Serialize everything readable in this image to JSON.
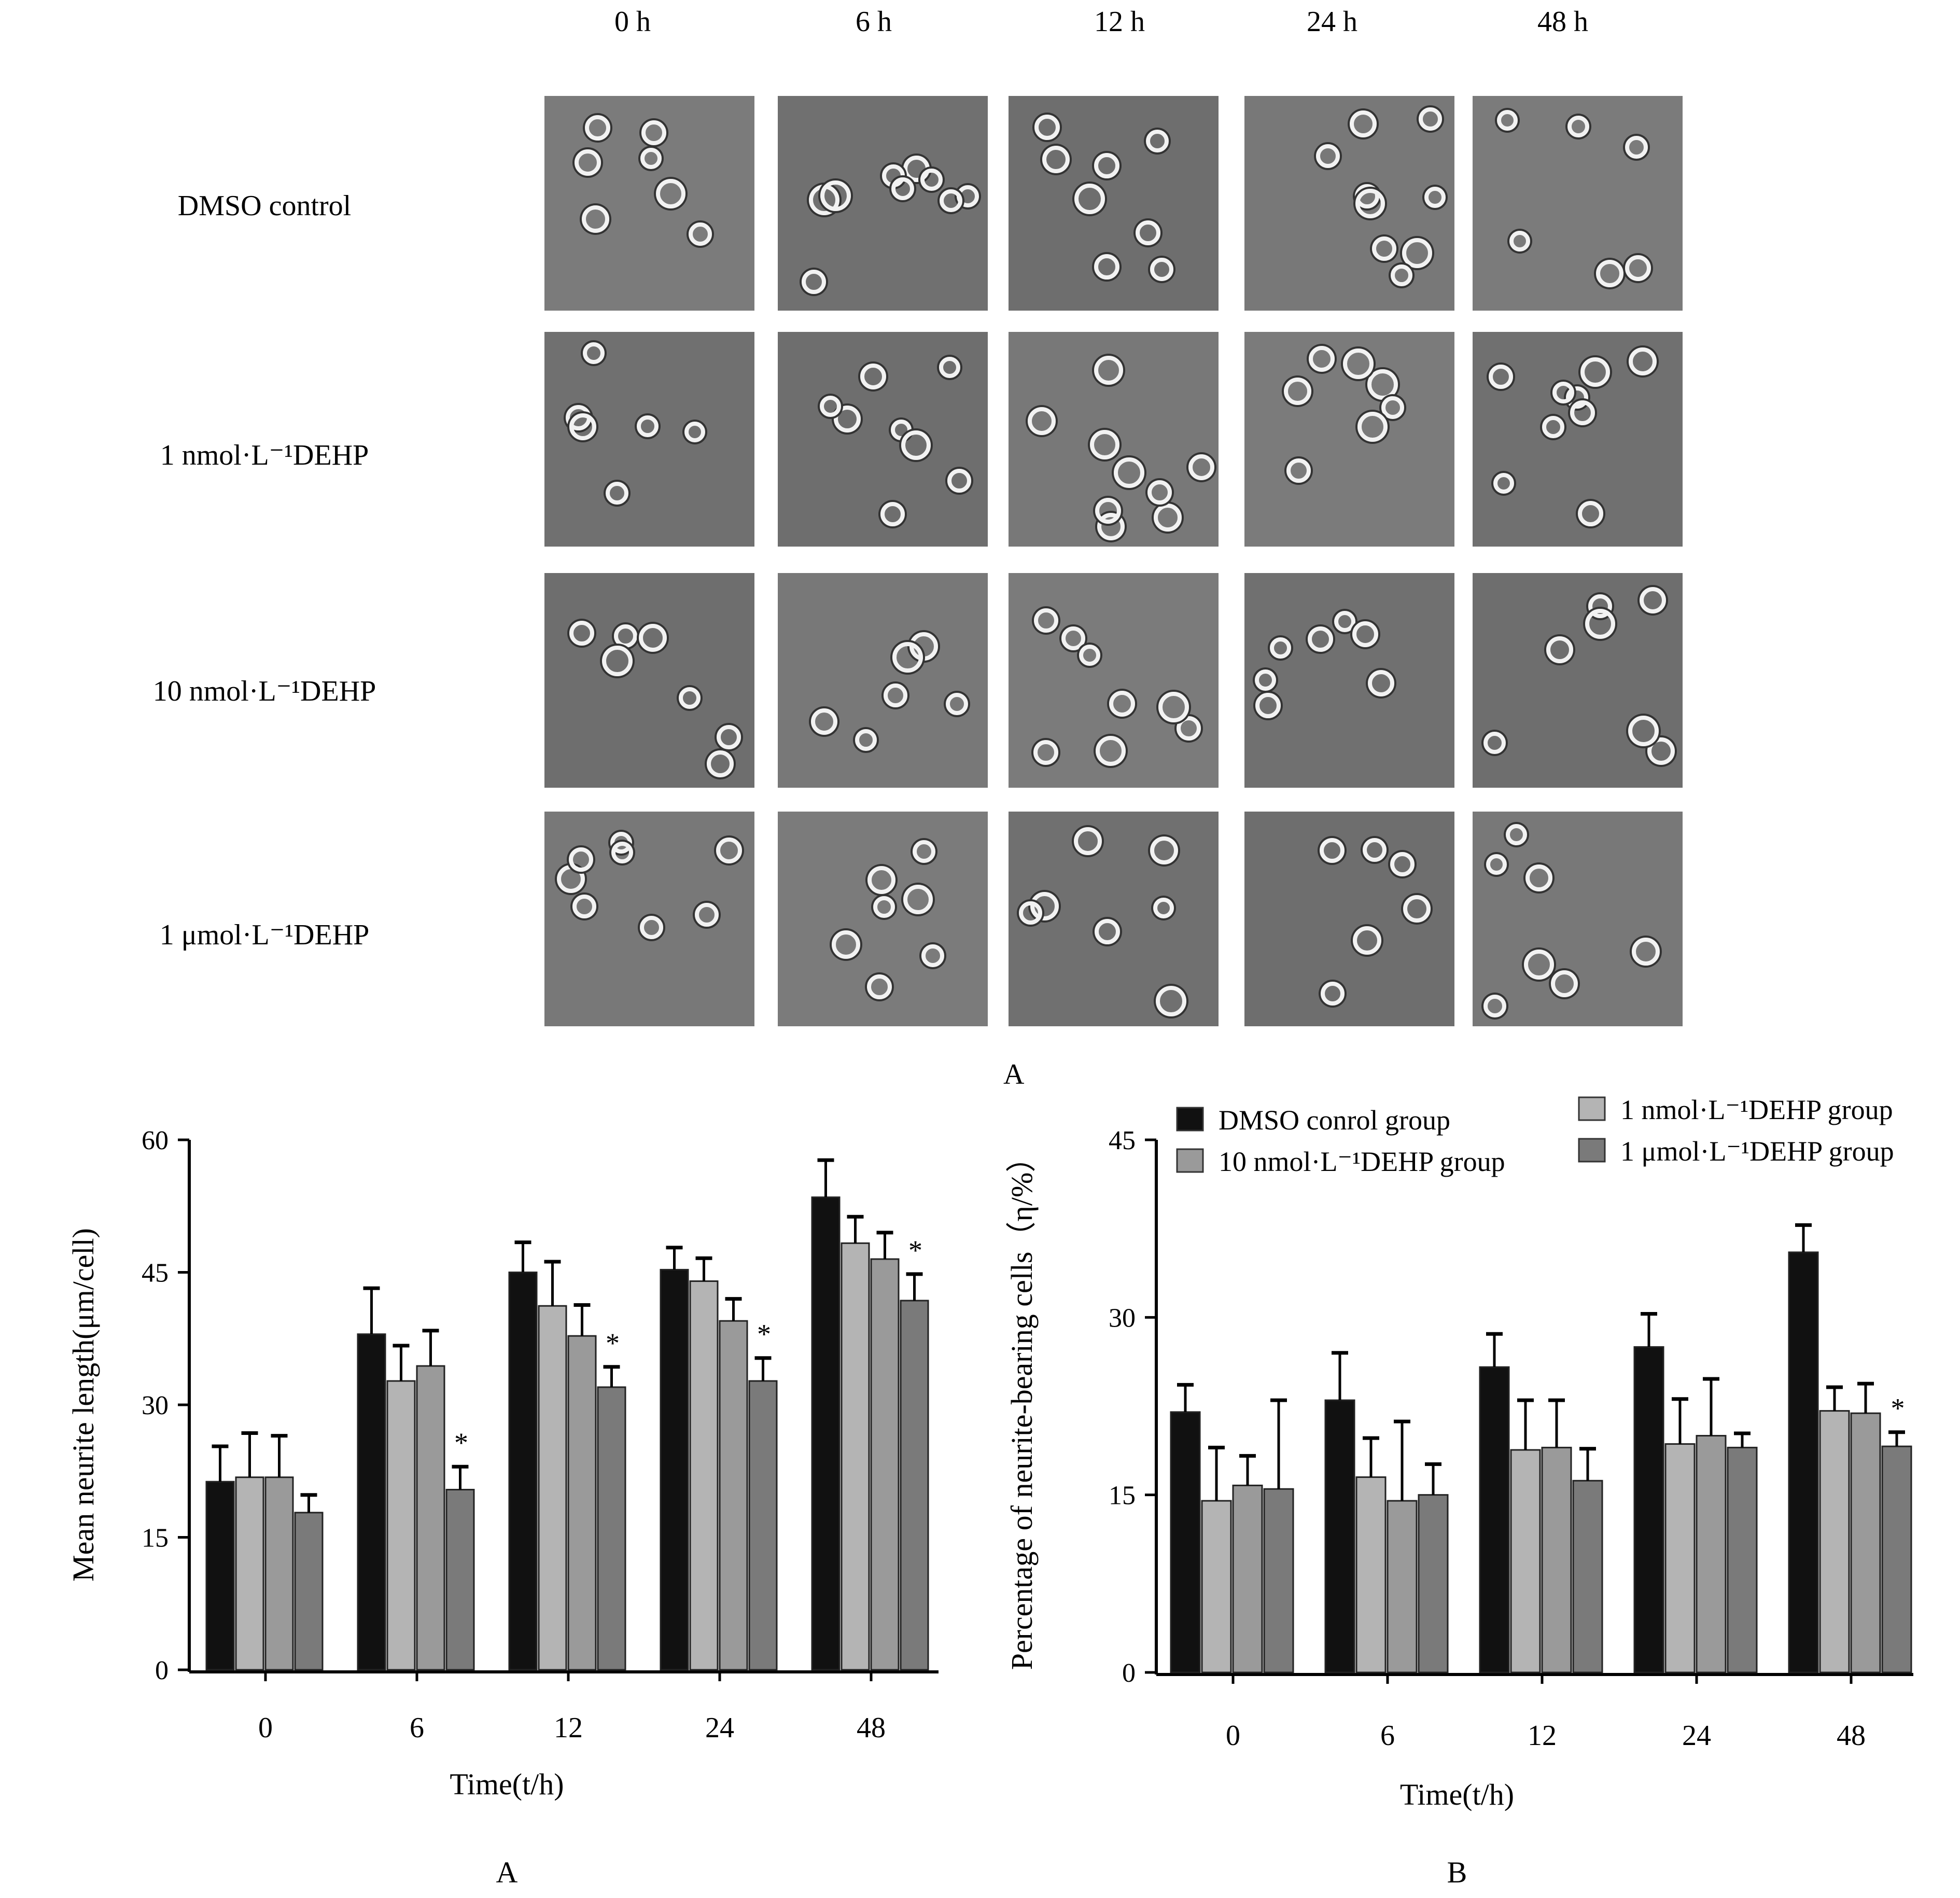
{
  "figure": {
    "micrograph_panel": {
      "columns": [
        "0  h",
        "6  h",
        "12  h",
        "24  h",
        "48  h"
      ],
      "rows": [
        "DMSO control",
        "1 nmol·L⁻¹DEHP",
        "10 nmol·L⁻¹DEHP",
        "1 μmol·L⁻¹DEHP"
      ],
      "caption": "A"
    },
    "captions": {
      "chart_a": "A",
      "chart_b": "B"
    }
  },
  "chart_data": [
    {
      "type": "bar",
      "title": "",
      "xlabel": "Time(t/h)",
      "ylabel": "Mean neurite length(μm/cell)",
      "categories": [
        "0",
        "6",
        "12",
        "24",
        "48"
      ],
      "yticks": [
        "0",
        "15",
        "30",
        "45",
        "60"
      ],
      "ylim": [
        0,
        60
      ],
      "grid": false,
      "legend": "none",
      "series": [
        {
          "name": "DMSO conrol group",
          "color": "#111111",
          "values": [
            21.3,
            38.0,
            45.0,
            45.3,
            53.5
          ],
          "errors": [
            4.0,
            5.2,
            3.4,
            2.5,
            4.2
          ]
        },
        {
          "name": "1 nmol·L⁻¹DEHP group",
          "color": "#b4b4b4",
          "values": [
            21.8,
            32.7,
            41.2,
            44.0,
            48.3
          ],
          "errors": [
            5.0,
            4.0,
            5.0,
            2.6,
            3.0
          ]
        },
        {
          "name": "10 nmol·L⁻¹DEHP group",
          "color": "#9a9a9a",
          "values": [
            21.8,
            34.4,
            37.8,
            39.5,
            46.5
          ],
          "errors": [
            4.7,
            4.0,
            3.5,
            2.5,
            3.0
          ]
        },
        {
          "name": "1 μmol·L⁻¹DEHP group",
          "color": "#7a7a7a",
          "values": [
            17.8,
            20.4,
            32.0,
            32.7,
            41.8
          ],
          "errors": [
            2.0,
            2.6,
            2.3,
            2.6,
            3.0
          ],
          "significant": [
            false,
            true,
            true,
            true,
            true
          ]
        }
      ],
      "annotation": "*",
      "caption": "A"
    },
    {
      "type": "bar",
      "title": "",
      "xlabel": "Time(t/h)",
      "ylabel": "Percentage of neurite-bearing cells（η/%）",
      "categories": [
        "0",
        "6",
        "12",
        "24",
        "48"
      ],
      "yticks": [
        "0",
        "15",
        "30",
        "45"
      ],
      "ylim": [
        0,
        45
      ],
      "grid": false,
      "legend": "top",
      "series": [
        {
          "name": "DMSO conrol group",
          "color": "#111111",
          "values": [
            22.0,
            23.0,
            25.8,
            27.5,
            35.5
          ],
          "errors": [
            2.3,
            4.0,
            2.8,
            2.8,
            2.3
          ]
        },
        {
          "name": "1 nmol·L⁻¹DEHP group",
          "color": "#b4b4b4",
          "values": [
            14.5,
            16.5,
            18.8,
            19.3,
            22.1
          ],
          "errors": [
            4.5,
            3.3,
            4.2,
            3.8,
            2.0
          ]
        },
        {
          "name": "10 nmol·L⁻¹DEHP group",
          "color": "#9a9a9a",
          "values": [
            15.8,
            14.5,
            19.0,
            20.0,
            21.9
          ],
          "errors": [
            2.5,
            6.7,
            4.0,
            4.8,
            2.5
          ]
        },
        {
          "name": "1 μmol·L⁻¹DEHP group",
          "color": "#7a7a7a",
          "values": [
            15.5,
            15.0,
            16.2,
            19.0,
            19.1
          ],
          "errors": [
            7.5,
            2.6,
            2.7,
            1.2,
            1.2
          ],
          "significant": [
            false,
            false,
            false,
            false,
            true
          ]
        }
      ],
      "legend_entries": [
        "DMSO conrol group",
        "1 nmol·L⁻¹DEHP group",
        "10 nmol·L⁻¹DEHP group",
        "1 μmol·L⁻¹DEHP group"
      ],
      "annotation": "*",
      "caption": "B"
    }
  ]
}
